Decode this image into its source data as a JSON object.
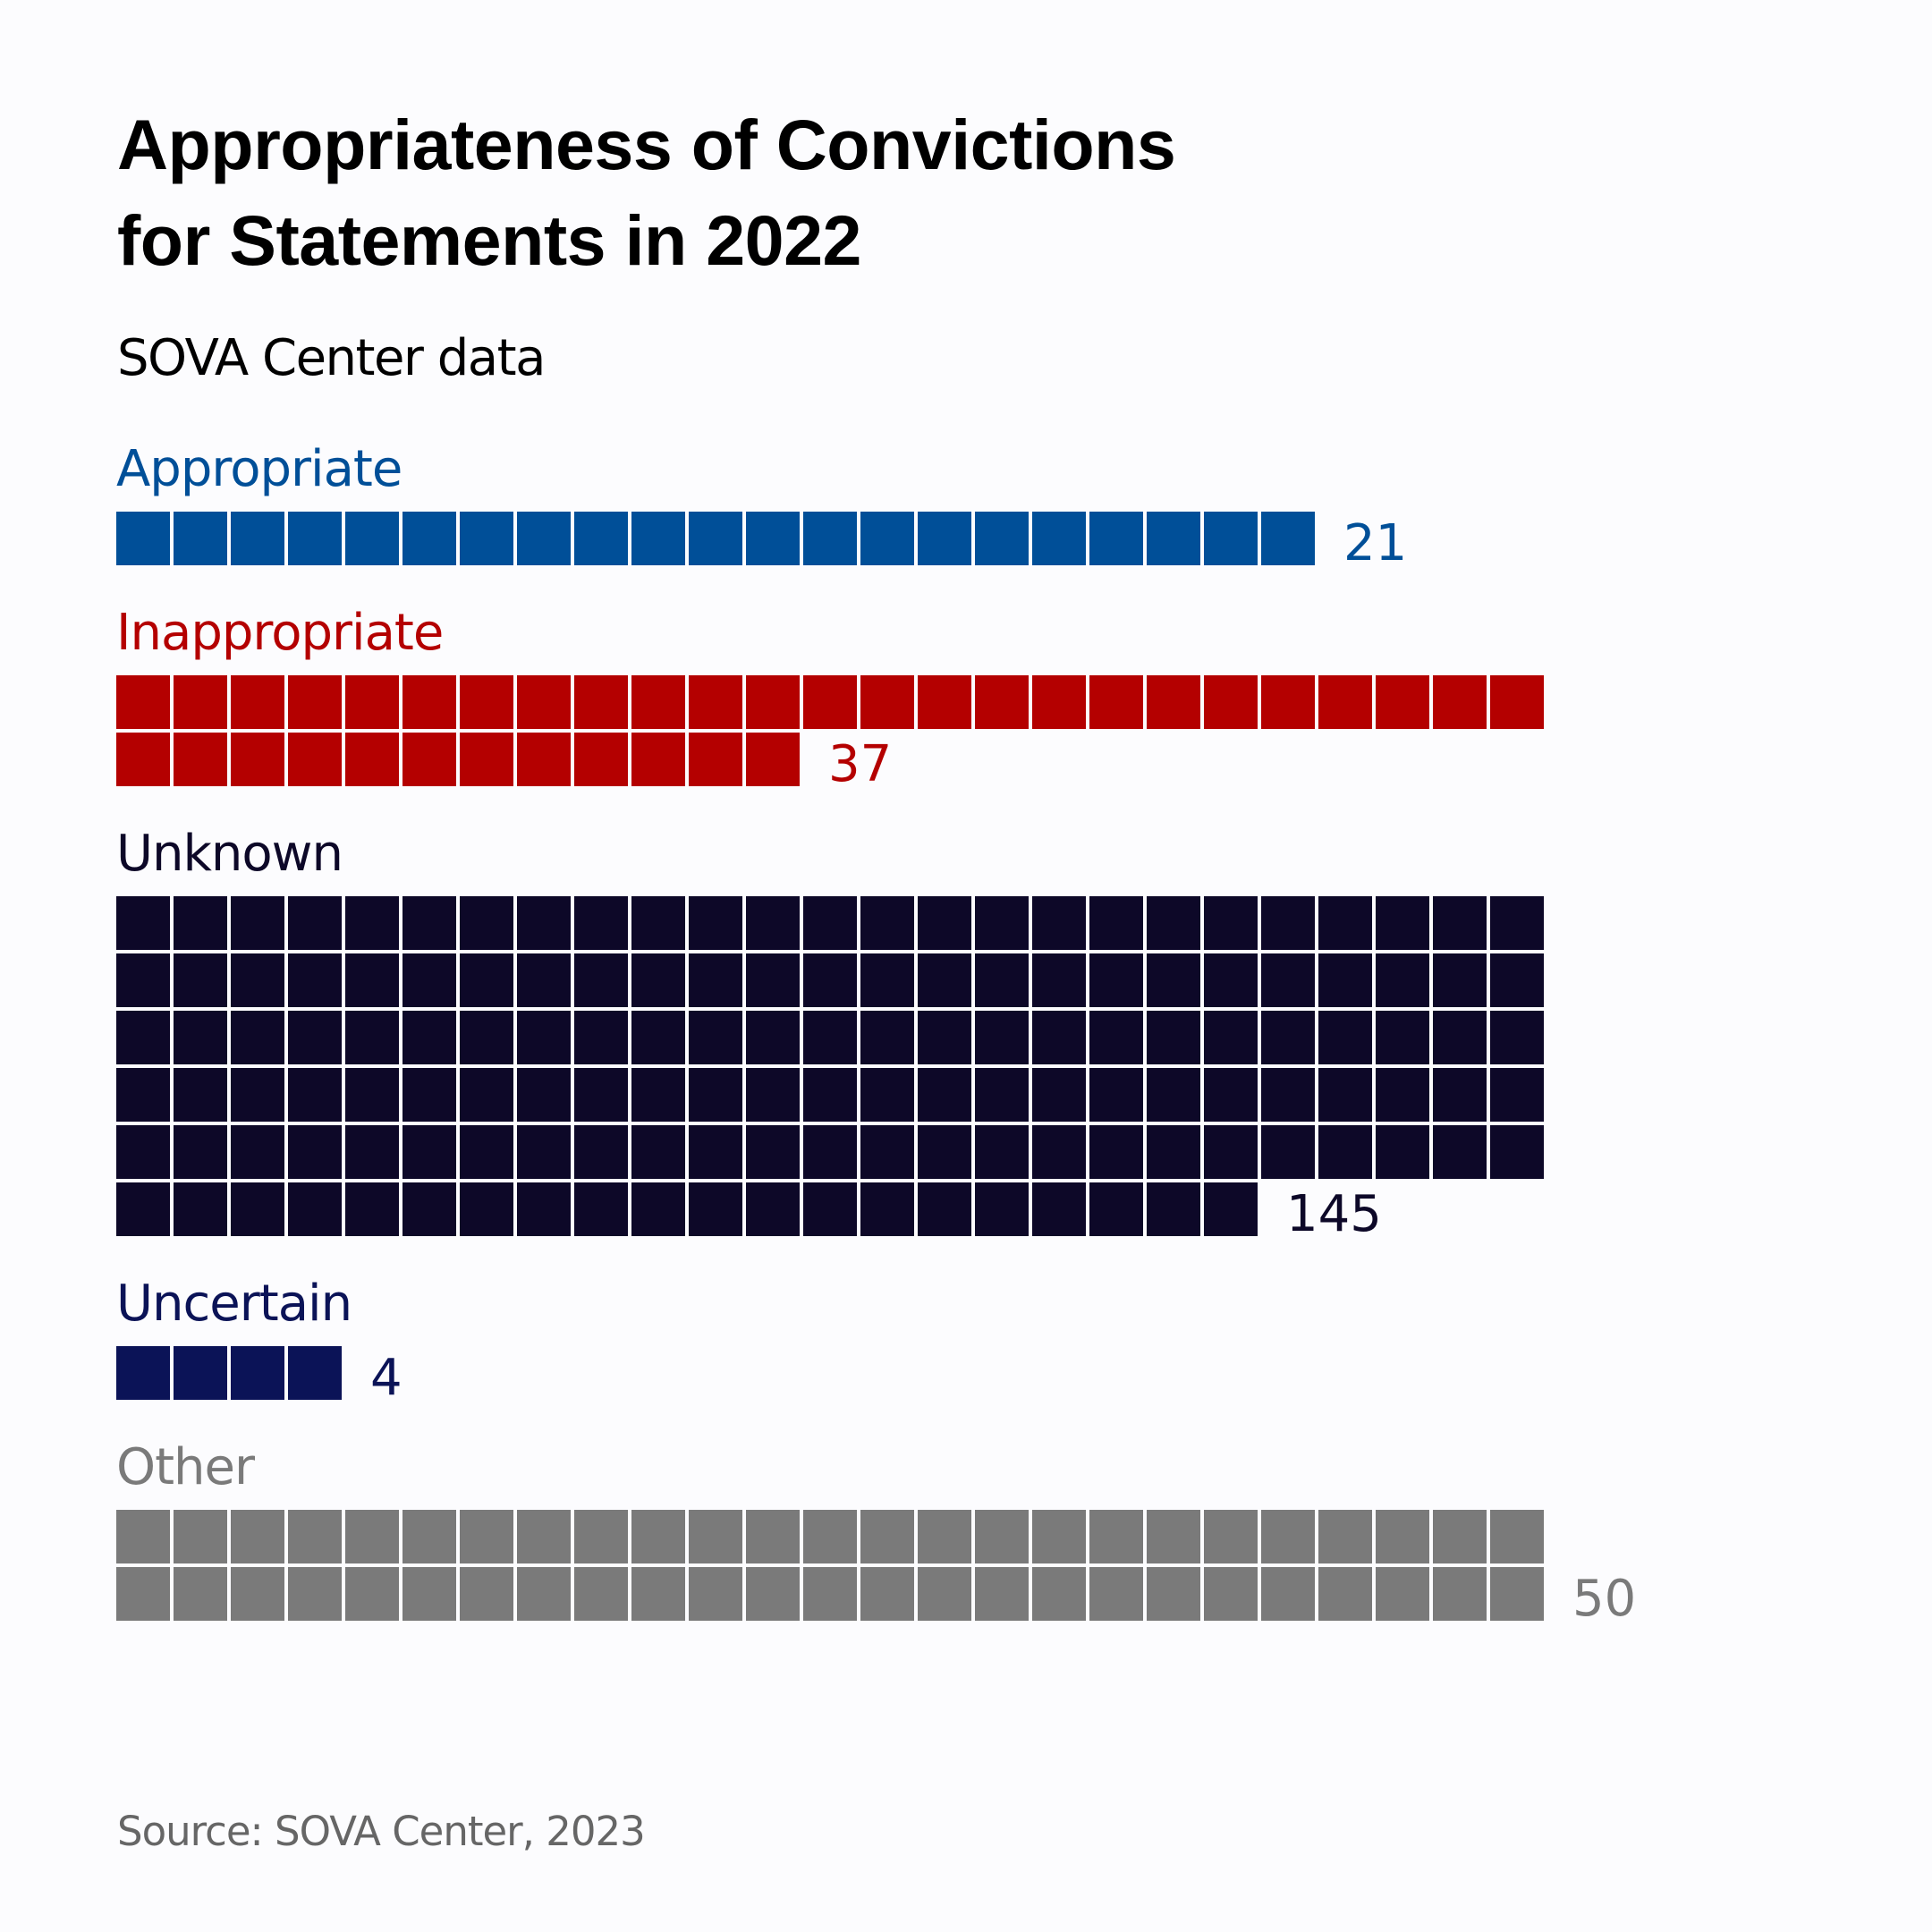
{
  "title_lines": [
    "Appropriateness of Convictions",
    "for Statements in 2022"
  ],
  "subtitle": "SOVA Center data",
  "source": "Source: SOVA Center, 2023",
  "background_color": "#fcfcfe",
  "chart_data": {
    "type": "waffle",
    "title": "Appropriateness of Convictions for Statements in 2022",
    "subtitle": "SOVA Center data",
    "source": "Source: SOVA Center, 2023",
    "units_per_square": 1,
    "squares_per_row": 25,
    "categories": [
      "Appropriate",
      "Inappropriate",
      "Unknown",
      "Uncertain",
      "Other"
    ],
    "values": [
      21,
      37,
      145,
      4,
      50
    ],
    "series": [
      {
        "name": "Appropriate",
        "value": 21,
        "color": "#004f98"
      },
      {
        "name": "Inappropriate",
        "value": 37,
        "color": "#b40000"
      },
      {
        "name": "Unknown",
        "value": 145,
        "color": "#0d0828"
      },
      {
        "name": "Uncertain",
        "value": 4,
        "color": "#0b1357"
      },
      {
        "name": "Other",
        "value": 50,
        "color": "#7a7a7a"
      }
    ]
  }
}
